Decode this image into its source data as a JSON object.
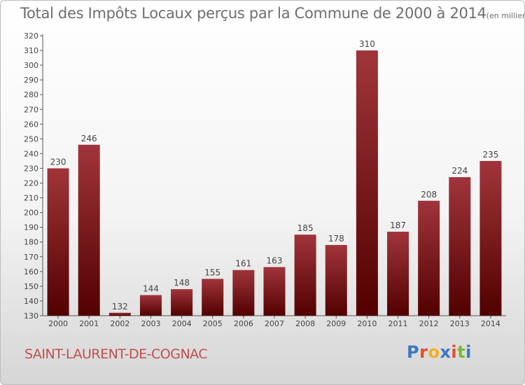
{
  "header": {
    "title": "Total des Impôts Locaux perçus par la Commune de 2000 à 2014",
    "unit_note": "(en milliers d'€)"
  },
  "footer": {
    "commune": "SAINT-LAURENT-DE-COGNAC",
    "logo_text": "Proxiti",
    "logo_colors": [
      "#3b78c4",
      "#e84c2b",
      "#f2b01e",
      "#3b78c4",
      "#e84c2b",
      "#7cb832",
      "#3b78c4"
    ]
  },
  "colors": {
    "bar_top": "#a0353b",
    "bar_bottom": "#520000",
    "axis": "#555555",
    "text": "#444444",
    "grid": "#ffffff"
  },
  "chart_data": {
    "type": "bar",
    "title": "Total des Impôts Locaux perçus par la Commune de 2000 à 2014",
    "xlabel": "",
    "ylabel": "",
    "categories": [
      "2000",
      "2001",
      "2002",
      "2003",
      "2004",
      "2005",
      "2006",
      "2007",
      "2008",
      "2009",
      "2010",
      "2011",
      "2012",
      "2013",
      "2014"
    ],
    "values": [
      230,
      246,
      132,
      144,
      148,
      155,
      161,
      163,
      185,
      178,
      310,
      187,
      208,
      224,
      235
    ],
    "ylim": [
      130,
      320
    ],
    "yticks": [
      130,
      140,
      150,
      160,
      170,
      180,
      190,
      200,
      210,
      220,
      230,
      240,
      250,
      260,
      270,
      280,
      290,
      300,
      310,
      320
    ],
    "grid": false
  }
}
